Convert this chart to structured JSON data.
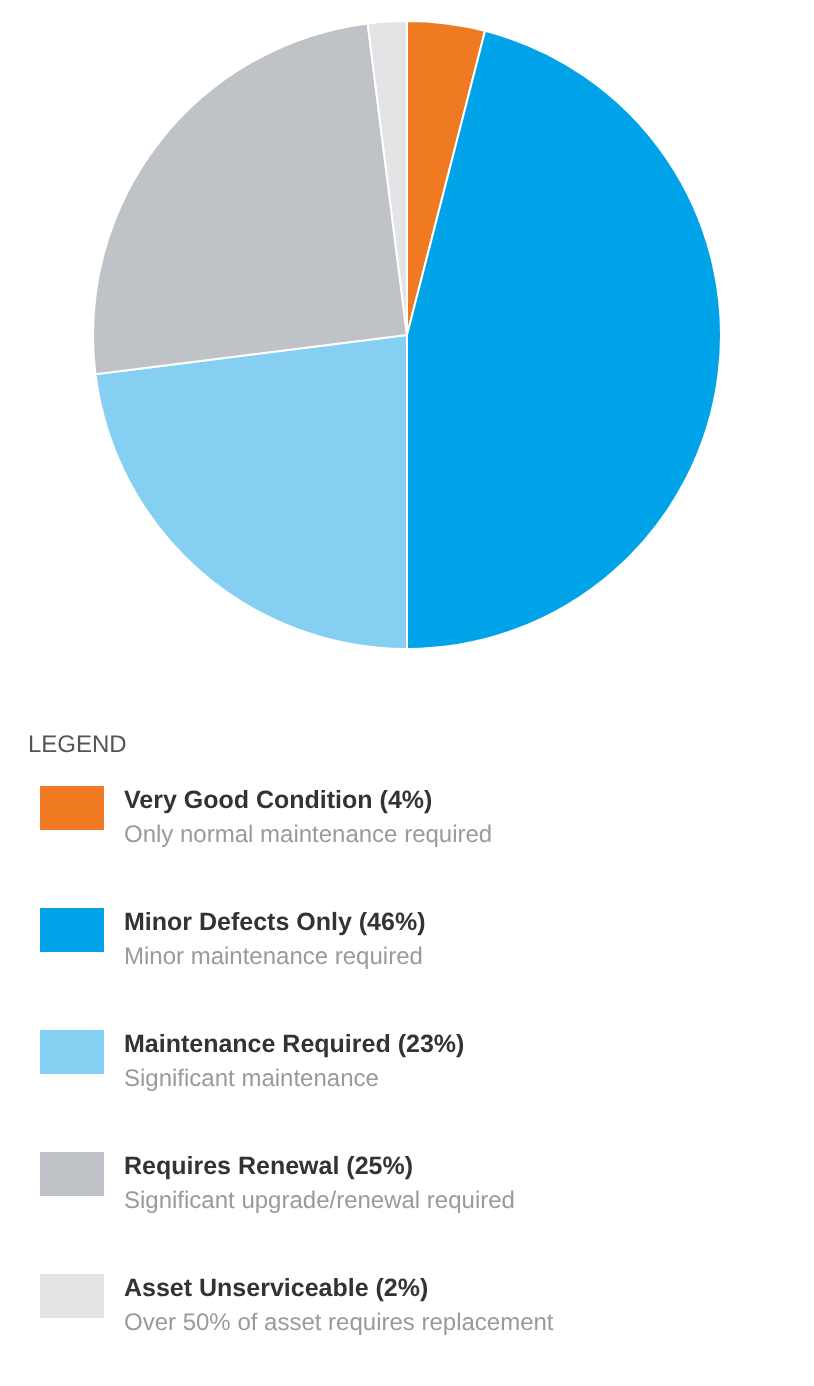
{
  "chart_data": {
    "type": "pie",
    "legend_title": "LEGEND",
    "legend": "bottom",
    "categories": [
      "Very Good Condition",
      "Minor Defects Only",
      "Maintenance Required",
      "Requires Renewal",
      "Asset Unserviceable"
    ],
    "values": [
      4,
      46,
      23,
      25,
      2
    ],
    "value_labels": [
      "(4%)",
      "(46%)",
      "(23%)",
      "(25%)",
      "(2%)"
    ],
    "colors": [
      "#f07a22",
      "#00a3e8",
      "#85cff2",
      "#bfc3c7",
      "#e4e4e6"
    ],
    "annotations": [
      "Only normal maintenance required",
      "Minor maintenance required",
      "Significant maintenance",
      "Significant upgrade/renewal required",
      "Over 50% of asset requires replacement"
    ]
  }
}
